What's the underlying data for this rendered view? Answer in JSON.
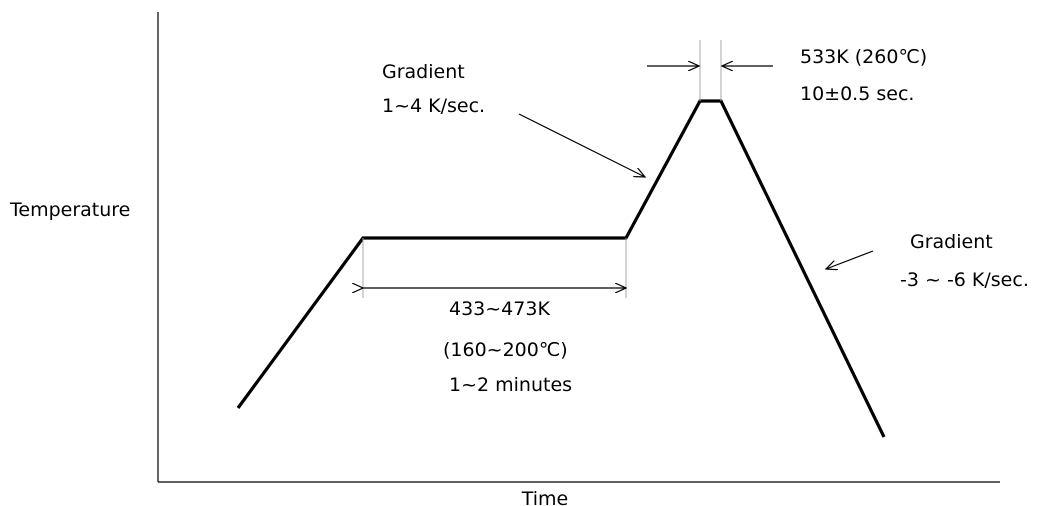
{
  "axes": {
    "y_label": "Temperature",
    "x_label": "Time"
  },
  "annotations": {
    "preheat": {
      "range": "433~473K",
      "range_celsius": "(160~200℃)",
      "duration": "1~2 minutes"
    },
    "ramp_up": {
      "title": "Gradient",
      "rate": "1~4 K/sec."
    },
    "peak": {
      "temp": "533K (260℃)",
      "duration": "10±0.5 sec."
    },
    "ramp_down": {
      "title": "Gradient",
      "rate": "-3 ~ -6 K/sec."
    }
  }
}
